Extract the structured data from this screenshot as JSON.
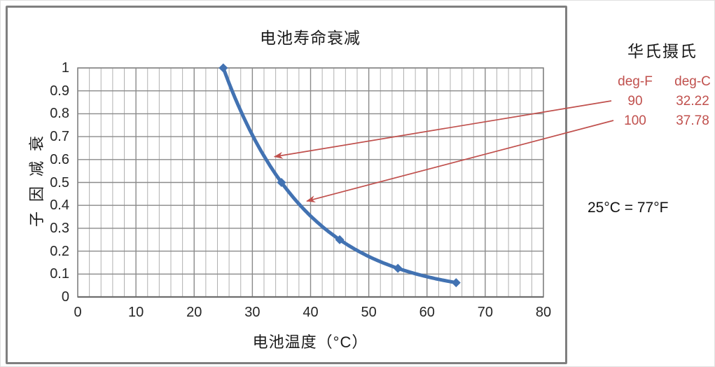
{
  "colors": {
    "line": "#4272b2",
    "red": "#c0504d",
    "grid_minor": "#b0b0b0",
    "grid_major": "#8a8a8a",
    "plot_border": "#8a8a8a",
    "axis_line": "#6e6e6e",
    "frame_border": "#7f7f7f",
    "text": "#1a1a1a"
  },
  "chart_data": {
    "type": "line",
    "title": "电池寿命衰减",
    "xlabel": "电池温度（°C）",
    "ylabel": "衰减因子",
    "x": [
      25,
      35,
      45,
      55,
      65
    ],
    "y": [
      1,
      0.5,
      0.25,
      0.125,
      0.0625
    ],
    "xlim": [
      0,
      80
    ],
    "ylim": [
      0,
      1
    ],
    "x_ticks": [
      "0",
      "10",
      "20",
      "30",
      "40",
      "50",
      "60",
      "70",
      "80"
    ],
    "y_ticks": [
      "1",
      "0.9",
      "0.8",
      "0.7",
      "0.6",
      "0.5",
      "0.4",
      "0.3",
      "0.2",
      "0.1",
      "0"
    ],
    "x_minor_step": 2,
    "x_major_step": 10,
    "y_major_step": 0.1,
    "grid": "on",
    "legend": "none",
    "marker": "diamond",
    "smooth": true
  },
  "annotations": {
    "conversion_title": "华氏摄氏",
    "table": {
      "headers": [
        "deg-F",
        "deg-C"
      ],
      "rows": [
        [
          "90",
          "32.22"
        ],
        [
          "100",
          "37.78"
        ]
      ]
    },
    "arrows": [
      {
        "points_to_deg_c": 32.22
      },
      {
        "points_to_deg_c": 37.78
      }
    ],
    "note": "25°C = 77°F"
  }
}
